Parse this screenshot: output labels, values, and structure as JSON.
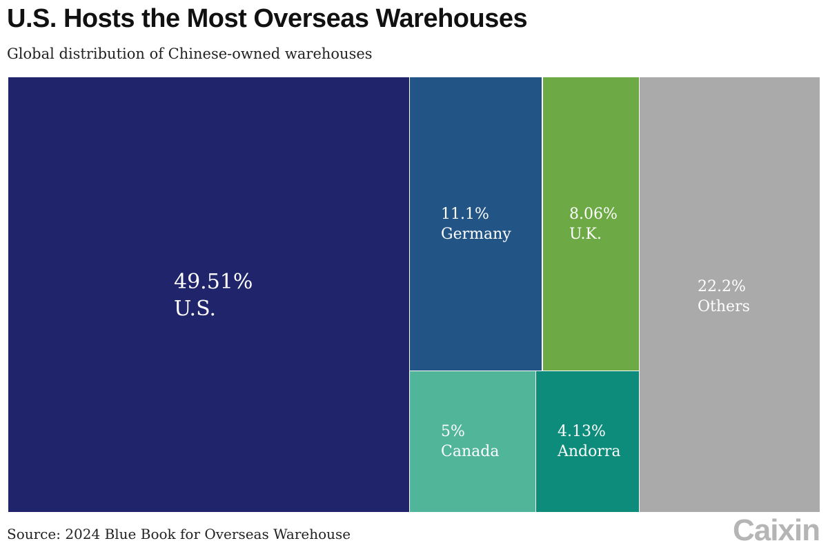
{
  "title": "U.S. Hosts the Most Overseas Warehouses",
  "subtitle": "Global distribution of Chinese-owned warehouses",
  "source": "Source: 2024 Blue Book for Overseas Warehouse",
  "logo_text": "Caixin",
  "chart_data": {
    "type": "treemap",
    "unit": "%",
    "items": [
      {
        "name": "U.S.",
        "value": 49.51,
        "label": "49.51%",
        "color": "#1f246b"
      },
      {
        "name": "Germany",
        "value": 11.1,
        "label": "11.1%",
        "color": "#225586"
      },
      {
        "name": "U.K.",
        "value": 8.06,
        "label": "8.06%",
        "color": "#6daa45"
      },
      {
        "name": "Canada",
        "value": 5,
        "label": "5%",
        "color": "#51b59a"
      },
      {
        "name": "Andorra",
        "value": 4.13,
        "label": "4.13%",
        "color": "#0d8c7c"
      },
      {
        "name": "Others",
        "value": 22.2,
        "label": "22.2%",
        "color": "#aaaaaa"
      }
    ]
  }
}
